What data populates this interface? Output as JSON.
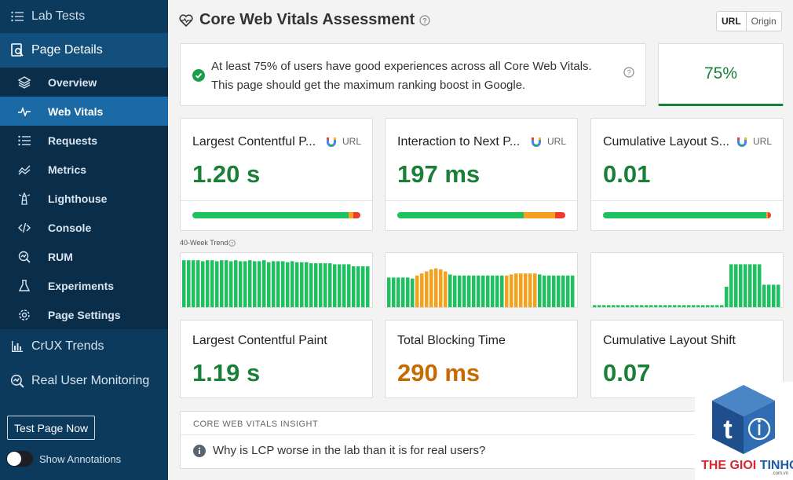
{
  "sidebar": {
    "lab_tests": "Lab Tests",
    "page_details": "Page Details",
    "items": [
      {
        "label": "Overview",
        "icon": "layers-icon"
      },
      {
        "label": "Web Vitals",
        "icon": "pulse-icon"
      },
      {
        "label": "Requests",
        "icon": "list-icon"
      },
      {
        "label": "Metrics",
        "icon": "chart-trend-icon"
      },
      {
        "label": "Lighthouse",
        "icon": "lighthouse-icon"
      },
      {
        "label": "Console",
        "icon": "code-icon"
      },
      {
        "label": "RUM",
        "icon": "rum-icon"
      },
      {
        "label": "Experiments",
        "icon": "flask-icon"
      },
      {
        "label": "Page Settings",
        "icon": "gear-icon"
      }
    ],
    "crux_trends": "CrUX Trends",
    "rum": "Real User Monitoring",
    "test_button": "Test Page Now",
    "annotations": "Show Annotations"
  },
  "header": {
    "title": "Core Web Vitals Assessment",
    "toggle_url": "URL",
    "toggle_origin": "Origin"
  },
  "assessment": {
    "line1": "At least 75% of users have good experiences across all Core Web Vitals.",
    "line2": "This page should get the maximum ranking boost in Google.",
    "score": "75%"
  },
  "colors": {
    "good": "#1ec15f",
    "needs_improvement": "#f5a11c",
    "poor": "#ee3b30",
    "green_text": "#1a7f37",
    "orange_text": "#c76a00"
  },
  "metrics": [
    {
      "label": "Largest Contentful P...",
      "source": "URL",
      "value": "1.20 s",
      "dist": [
        0.93,
        0.03,
        0.04
      ]
    },
    {
      "label": "Interaction to Next P...",
      "source": "URL",
      "value": "197 ms",
      "dist": [
        0.75,
        0.19,
        0.06
      ]
    },
    {
      "label": "Cumulative Layout S...",
      "source": "URL",
      "value": "0.01",
      "dist": [
        0.97,
        0.01,
        0.02
      ]
    }
  ],
  "trend_label": "40-Week Trend",
  "trends": [
    {
      "values": [
        92,
        92,
        92,
        92,
        90,
        92,
        92,
        90,
        92,
        92,
        90,
        92,
        90,
        90,
        92,
        90,
        90,
        92,
        88,
        90,
        90,
        90,
        88,
        90,
        88,
        88,
        88,
        86,
        86,
        86,
        86,
        86,
        84,
        84,
        84,
        84,
        80,
        80,
        80,
        80
      ],
      "status": [
        "g",
        "g",
        "g",
        "g",
        "g",
        "g",
        "g",
        "g",
        "g",
        "g",
        "g",
        "g",
        "g",
        "g",
        "g",
        "g",
        "g",
        "g",
        "g",
        "g",
        "g",
        "g",
        "g",
        "g",
        "g",
        "g",
        "g",
        "g",
        "g",
        "g",
        "g",
        "g",
        "g",
        "g",
        "g",
        "g",
        "g",
        "g",
        "g",
        "g"
      ]
    },
    {
      "values": [
        58,
        58,
        58,
        58,
        58,
        56,
        62,
        66,
        70,
        74,
        76,
        74,
        70,
        64,
        62,
        62,
        62,
        62,
        62,
        62,
        62,
        62,
        62,
        62,
        62,
        62,
        64,
        66,
        66,
        66,
        66,
        66,
        64,
        62,
        62,
        62,
        62,
        62,
        62,
        62
      ],
      "status": [
        "g",
        "g",
        "g",
        "g",
        "g",
        "g",
        "o",
        "o",
        "o",
        "o",
        "o",
        "o",
        "o",
        "g",
        "g",
        "g",
        "g",
        "g",
        "g",
        "g",
        "g",
        "g",
        "g",
        "g",
        "g",
        "o",
        "o",
        "o",
        "o",
        "o",
        "o",
        "o",
        "g",
        "g",
        "g",
        "g",
        "g",
        "g",
        "g",
        "g"
      ]
    },
    {
      "values": [
        4,
        4,
        4,
        4,
        4,
        4,
        4,
        4,
        4,
        4,
        4,
        4,
        4,
        4,
        4,
        4,
        4,
        4,
        4,
        4,
        4,
        4,
        4,
        4,
        4,
        4,
        4,
        4,
        40,
        84,
        84,
        84,
        84,
        84,
        84,
        84,
        44,
        44,
        44,
        44
      ],
      "status": [
        "g",
        "g",
        "g",
        "g",
        "g",
        "g",
        "g",
        "g",
        "g",
        "g",
        "g",
        "g",
        "g",
        "g",
        "g",
        "g",
        "g",
        "g",
        "g",
        "g",
        "g",
        "g",
        "g",
        "g",
        "g",
        "g",
        "g",
        "g",
        "g",
        "g",
        "g",
        "g",
        "g",
        "g",
        "g",
        "g",
        "g",
        "g",
        "g",
        "g"
      ]
    }
  ],
  "lab": [
    {
      "label": "Largest Contentful Paint",
      "value": "1.19 s",
      "status": "good"
    },
    {
      "label": "Total Blocking Time",
      "value": "290 ms",
      "status": "needs_improvement"
    },
    {
      "label": "Cumulative Layout Shift",
      "value": "0.07",
      "status": "good"
    }
  ],
  "insight": {
    "heading": "CORE WEB VITALS INSIGHT",
    "question": "Why is LCP worse in the lab than it is for real users?"
  },
  "logo": {
    "word1": "THE GIOI",
    "word2": "TINHOC",
    "domain": ".com.vn"
  }
}
